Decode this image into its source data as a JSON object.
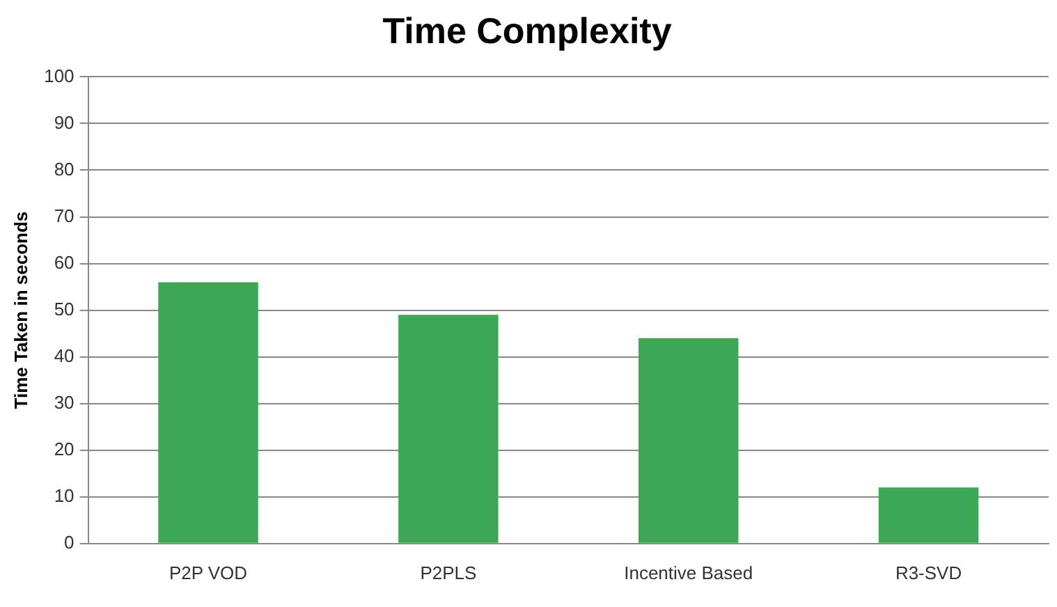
{
  "chart_data": {
    "type": "bar",
    "title": "Time Complexity",
    "ylabel": "Time Taken in seconds",
    "categories": [
      "P2P VOD",
      "P2PLS",
      "Incentive Based",
      "R3-SVD"
    ],
    "values": [
      56,
      49,
      44,
      12
    ],
    "color": "#3ca754",
    "ylim": [
      0,
      100
    ],
    "yticks": [
      0,
      10,
      20,
      30,
      40,
      50,
      60,
      70,
      80,
      90,
      100
    ],
    "grid": "y"
  }
}
